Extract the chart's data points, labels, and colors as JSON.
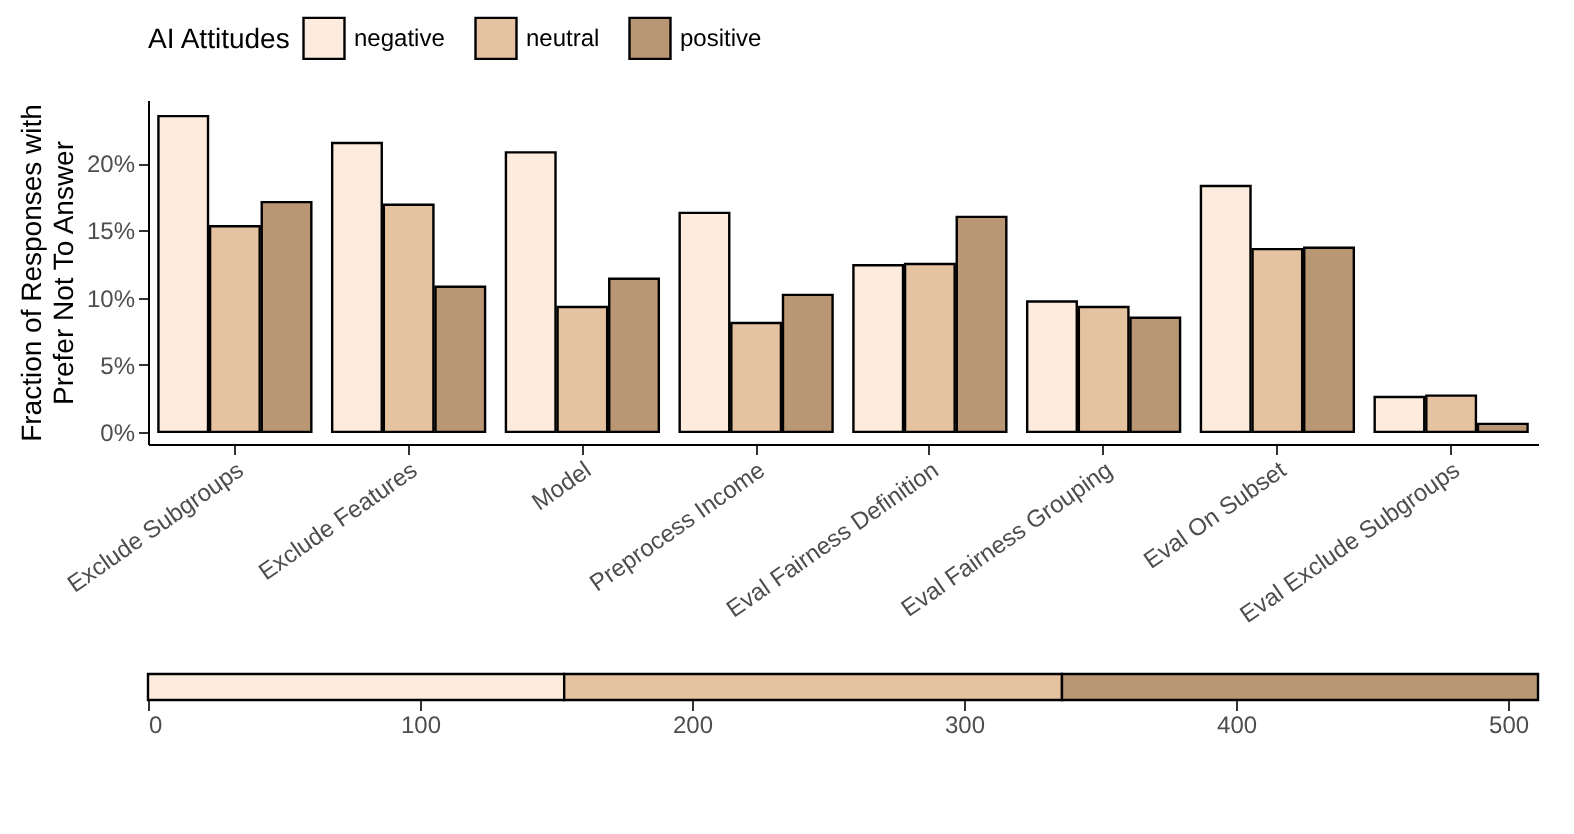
{
  "chart_data": [
    {
      "type": "bar",
      "ylabel": "Fraction of Responses with\nPrefer Not To Answer",
      "legend_title": "AI Attitudes",
      "legend": "top",
      "grid": false,
      "categories": [
        "Exclude Subgroups",
        "Exclude Features",
        "Model",
        "Preprocess Income",
        "Eval Fairness Definition",
        "Eval Fairness Grouping",
        "Eval On Subset",
        "Eval Exclude Subgroups"
      ],
      "series": [
        {
          "name": "negative",
          "color": "#fdebdd",
          "values": [
            23.5,
            21.5,
            20.8,
            16.3,
            12.4,
            9.7,
            18.3,
            2.6
          ]
        },
        {
          "name": "neutral",
          "color": "#e6c3a0",
          "values": [
            15.3,
            16.9,
            9.3,
            8.1,
            12.5,
            9.3,
            13.6,
            2.7
          ]
        },
        {
          "name": "positive",
          "color": "#b99674",
          "values": [
            17.1,
            10.8,
            11.4,
            10.2,
            16.0,
            8.5,
            13.7,
            0.6
          ]
        }
      ],
      "ylim": [
        -0.9,
        24.7
      ],
      "yticks": [
        {
          "value": 0,
          "label": "0%"
        },
        {
          "value": 5,
          "label": "5%"
        },
        {
          "value": 10,
          "label": "10%"
        },
        {
          "value": 15,
          "label": "15%"
        },
        {
          "value": 20,
          "label": "20%"
        }
      ]
    },
    {
      "type": "bar",
      "orientation": "horizontal",
      "stacked": true,
      "legend": false,
      "grid": false,
      "tick_labels": "x",
      "categories": [
        null
      ],
      "series": [
        {
          "color": "#fdebdd",
          "values": [
            153
          ]
        },
        {
          "color": "#e6c3a0",
          "values": [
            183
          ]
        },
        {
          "color": "#b99674",
          "values": [
            175
          ]
        }
      ],
      "xlim": [
        0,
        511
      ],
      "xticks": [
        0,
        100,
        200,
        300,
        400,
        500
      ]
    }
  ]
}
